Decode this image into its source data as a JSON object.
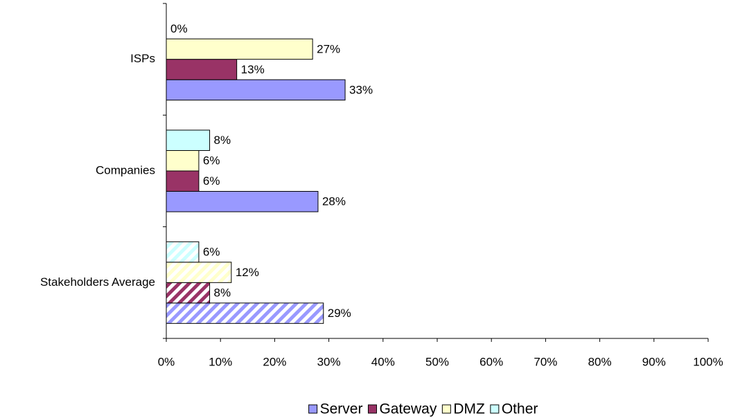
{
  "chart_data": {
    "type": "bar",
    "orientation": "horizontal",
    "categories": [
      "ISPs",
      "Companies",
      "Stakeholders Average"
    ],
    "hatched": [
      false,
      false,
      true
    ],
    "series": [
      {
        "name": "Server",
        "color": "#9999ff",
        "values": [
          33,
          28,
          29
        ],
        "value_labels": [
          "33%",
          "28%",
          "29%"
        ]
      },
      {
        "name": "Gateway",
        "color": "#993366",
        "values": [
          13,
          6,
          8
        ],
        "value_labels": [
          "13%",
          "6%",
          "8%"
        ]
      },
      {
        "name": "DMZ",
        "color": "#ffffcc",
        "values": [
          27,
          6,
          12
        ],
        "value_labels": [
          "27%",
          "6%",
          "12%"
        ]
      },
      {
        "name": "Other",
        "color": "#ccffff",
        "values": [
          0,
          8,
          6
        ],
        "value_labels": [
          "0%",
          "8%",
          "6%"
        ]
      }
    ],
    "xlim": [
      0,
      100
    ],
    "xticks": [
      {
        "value": 0,
        "label": "0%"
      },
      {
        "value": 10,
        "label": "10%"
      },
      {
        "value": 20,
        "label": "20%"
      },
      {
        "value": 30,
        "label": "30%"
      },
      {
        "value": 40,
        "label": "40%"
      },
      {
        "value": 50,
        "label": "50%"
      },
      {
        "value": 60,
        "label": "60%"
      },
      {
        "value": 70,
        "label": "70%"
      },
      {
        "value": 80,
        "label": "80%"
      },
      {
        "value": 90,
        "label": "90%"
      },
      {
        "value": 100,
        "label": "100%"
      }
    ],
    "legend": "bottom",
    "grid": false
  }
}
